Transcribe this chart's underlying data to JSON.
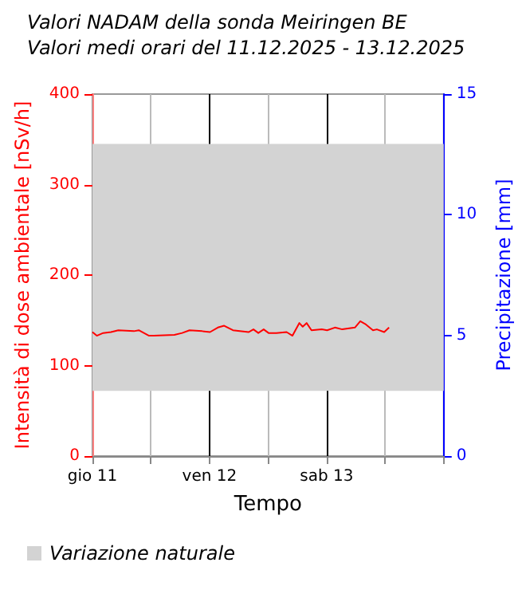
{
  "chart_data": {
    "type": "line",
    "title": "Valori NADAM della sonda Meiringen BE",
    "subtitle": "Valori medi orari del 11.12.2025 - 13.12.2025",
    "xlabel": "Tempo",
    "ylabel": "Intensità di dose ambientale [nSv/h]",
    "y2label": "Precipitazione [mm]",
    "x": [
      "2025-12-11T00:00",
      "2025-12-11T00:54",
      "2025-12-11T02:12",
      "2025-12-11T03:48",
      "2025-12-11T05:18",
      "2025-12-11T08:30",
      "2025-12-11T09:30",
      "2025-12-11T11:36",
      "2025-12-11T12:36",
      "2025-12-11T16:48",
      "2025-12-11T18:24",
      "2025-12-11T19:54",
      "2025-12-11T22:30",
      "2025-12-12T00:06",
      "2025-12-12T01:42",
      "2025-12-12T03:00",
      "2025-12-12T04:48",
      "2025-12-12T08:00",
      "2025-12-12T09:00",
      "2025-12-12T10:00",
      "2025-12-12T11:06",
      "2025-12-12T12:06",
      "2025-12-12T13:42",
      "2025-12-12T15:48",
      "2025-12-12T17:00",
      "2025-12-12T18:24",
      "2025-12-12T19:06",
      "2025-12-12T19:54",
      "2025-12-12T20:54",
      "2025-12-12T23:00",
      "2025-12-13T00:06",
      "2025-12-13T01:42",
      "2025-12-13T03:12",
      "2025-12-13T05:48",
      "2025-12-13T06:54",
      "2025-12-13T07:54",
      "2025-12-13T09:30",
      "2025-12-13T10:18",
      "2025-12-13T11:48",
      "2025-12-13T12:48"
    ],
    "series": [
      {
        "color": "#ff0000",
        "values": [
          137,
          133,
          136,
          137,
          139,
          138,
          139,
          133,
          133,
          134,
          136,
          139,
          138,
          137,
          142,
          144,
          139,
          137,
          140,
          136,
          140,
          136,
          136,
          137,
          133,
          147,
          143,
          147,
          139,
          140,
          139,
          142,
          140,
          142,
          149,
          146,
          139,
          140,
          137,
          142
        ]
      }
    ],
    "xlim": [
      "2025-12-11T00:00",
      "2025-12-14T00:00"
    ],
    "xticks": [
      {
        "value": "2025-12-11T00:00",
        "label": "gio 11"
      },
      {
        "value": "2025-12-11T12:00",
        "label": null
      },
      {
        "value": "2025-12-12T00:00",
        "label": "ven 12"
      },
      {
        "value": "2025-12-12T12:00",
        "label": null
      },
      {
        "value": "2025-12-13T00:00",
        "label": "sab 13"
      },
      {
        "value": "2025-12-13T12:00",
        "label": null
      },
      {
        "value": "2025-12-14T00:00",
        "label": null
      }
    ],
    "ylim": [
      0,
      400
    ],
    "yticks": [
      0,
      100,
      200,
      300,
      400
    ],
    "y2lim": [
      0,
      15
    ],
    "y2ticks": [
      0,
      5,
      10,
      15
    ],
    "bands": [
      {
        "axis": "y",
        "from": 72,
        "to": 345,
        "label": "Variazione naturale",
        "color": "#d3d3d3"
      }
    ],
    "grid": "x",
    "legend": "bottom left",
    "marker": "none",
    "line_style": "solid"
  }
}
